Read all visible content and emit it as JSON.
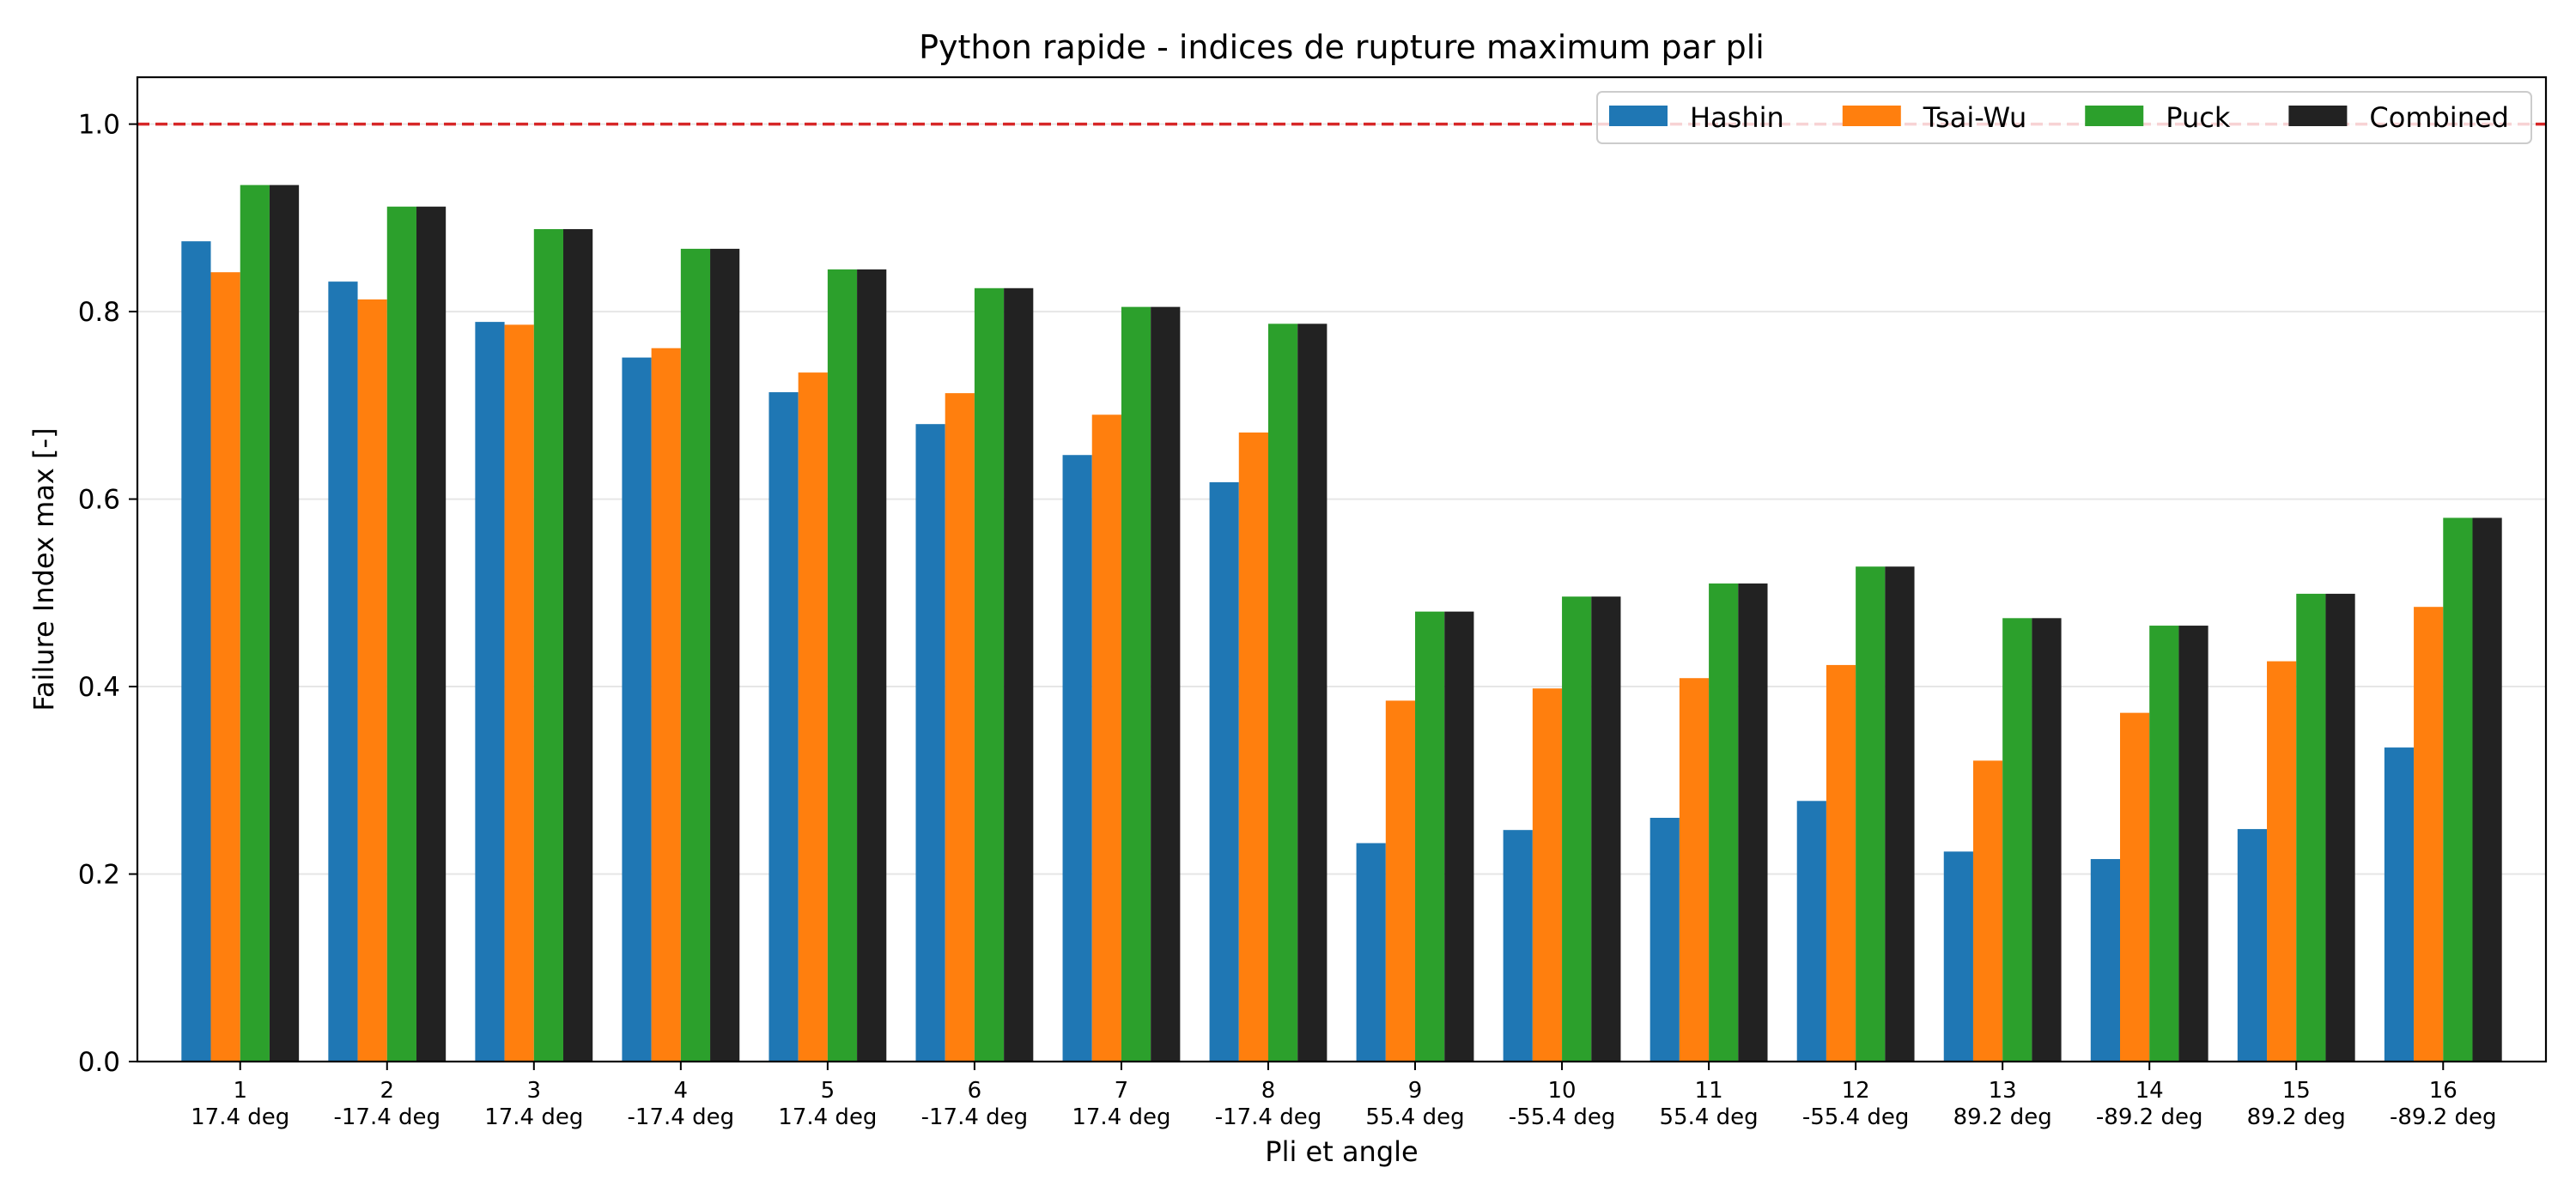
{
  "chart_data": {
    "type": "bar",
    "title": "Python rapide - indices de rupture maximum par pli",
    "xlabel": "Pli et angle",
    "ylabel": "Failure Index max [-]",
    "ylim": [
      0,
      1.05
    ],
    "yticks": [
      0.0,
      0.2,
      0.4,
      0.6,
      0.8,
      1.0
    ],
    "ytick_labels": [
      "0.0",
      "0.2",
      "0.4",
      "0.6",
      "0.8",
      "1.0"
    ],
    "grid": "horizontal",
    "legend": "top-right",
    "categories": [
      "1",
      "2",
      "3",
      "4",
      "5",
      "6",
      "7",
      "8",
      "9",
      "10",
      "11",
      "12",
      "13",
      "14",
      "15",
      "16"
    ],
    "category_sublabels": [
      "17.4 deg",
      "-17.4 deg",
      "17.4 deg",
      "-17.4 deg",
      "17.4 deg",
      "-17.4 deg",
      "17.4 deg",
      "-17.4 deg",
      "55.4 deg",
      "-55.4 deg",
      "55.4 deg",
      "-55.4 deg",
      "89.2 deg",
      "-89.2 deg",
      "89.2 deg",
      "-89.2 deg"
    ],
    "reference_line": {
      "y": 1.0,
      "style": "dashed",
      "color": "#d62728"
    },
    "series": [
      {
        "name": "Hashin",
        "color": "#1f77b4",
        "values": [
          0.875,
          0.832,
          0.789,
          0.751,
          0.714,
          0.68,
          0.647,
          0.618,
          0.233,
          0.247,
          0.26,
          0.278,
          0.224,
          0.216,
          0.248,
          0.335
        ]
      },
      {
        "name": "Tsai-Wu",
        "color": "#ff7f0e",
        "values": [
          0.842,
          0.813,
          0.786,
          0.761,
          0.735,
          0.713,
          0.69,
          0.671,
          0.385,
          0.398,
          0.409,
          0.423,
          0.321,
          0.372,
          0.427,
          0.485
        ]
      },
      {
        "name": "Puck",
        "color": "#2ca02c",
        "values": [
          0.935,
          0.912,
          0.888,
          0.867,
          0.845,
          0.825,
          0.805,
          0.787,
          0.48,
          0.496,
          0.51,
          0.528,
          0.473,
          0.465,
          0.499,
          0.58
        ]
      },
      {
        "name": "Combined",
        "color": "#222222",
        "values": [
          0.935,
          0.912,
          0.888,
          0.867,
          0.845,
          0.825,
          0.805,
          0.787,
          0.48,
          0.496,
          0.51,
          0.528,
          0.473,
          0.465,
          0.499,
          0.58
        ]
      }
    ]
  }
}
